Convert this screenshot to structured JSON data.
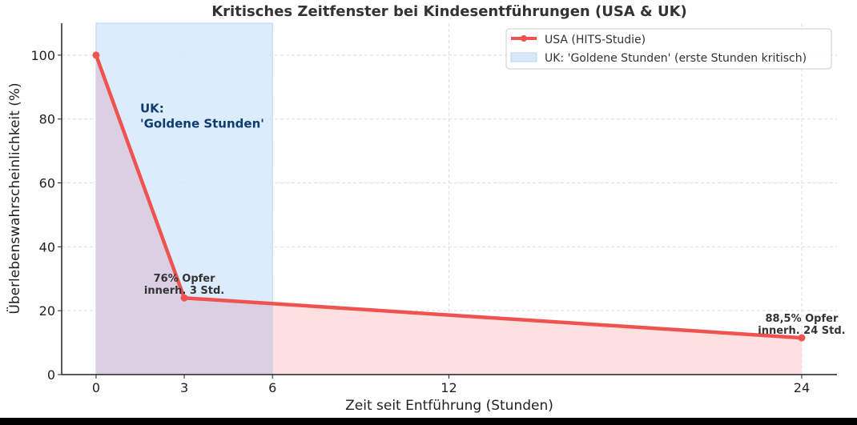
{
  "chart_data": {
    "type": "line",
    "title": "Kritisches Zeitfenster bei Kindesentführungen (USA & UK)",
    "xlabel": "Zeit seit Entführung (Stunden)",
    "ylabel": "Überlebenswahrscheinlichkeit (%)",
    "xlim": [
      -1.17,
      25.2
    ],
    "ylim": [
      0,
      110
    ],
    "xticks": [
      0,
      3,
      6,
      12,
      24
    ],
    "yticks": [
      0,
      20,
      40,
      60,
      80,
      100
    ],
    "grid": true,
    "legend_position": "top-right",
    "series": [
      {
        "name": "USA (HITS-Studie)",
        "x": [
          0,
          3,
          24
        ],
        "y": [
          100,
          24,
          11.5
        ],
        "color": "#ef5350",
        "fill": "#ffdede"
      }
    ],
    "span": {
      "label": "UK: 'Goldene Stunden' (erste Stunden kritisch)",
      "x0": 0,
      "x1": 6,
      "color": "#d6e9fb"
    },
    "annotations": [
      {
        "text": [
          "UK:",
          "'Goldene Stunden'"
        ],
        "x": 1.5,
        "y": 82,
        "color": "#0d3c6e"
      },
      {
        "text": [
          "76% Opfer",
          "innerh. 3 Std."
        ],
        "x": 3,
        "y": 24
      },
      {
        "text": [
          "88,5% Opfer",
          "innerh. 24 Std."
        ],
        "x": 24,
        "y": 11.5
      }
    ]
  }
}
